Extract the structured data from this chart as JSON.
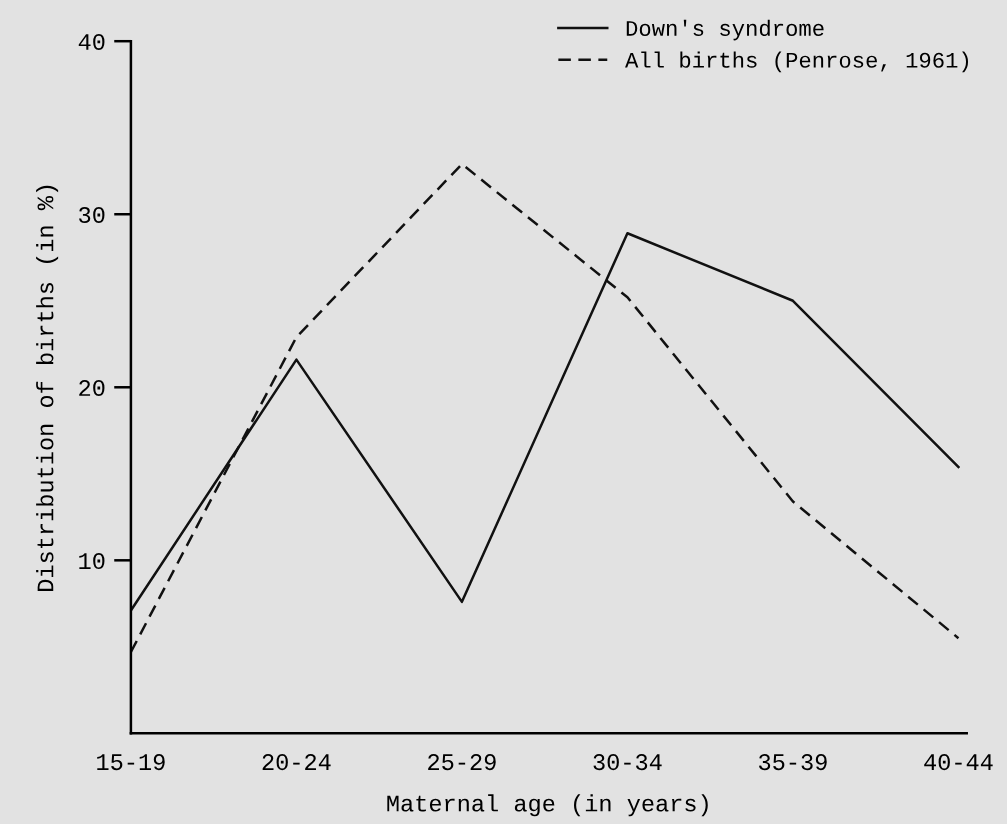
{
  "chart_data": {
    "type": "line",
    "xlabel": "Maternal age (in years)",
    "ylabel": "Distribution of births (in %)",
    "categories": [
      "15-19",
      "20-24",
      "25-29",
      "30-34",
      "35-39",
      "40-44"
    ],
    "series": [
      {
        "name": "Down's syndrome",
        "color": "#111111",
        "line_style": "solid",
        "values": [
          7.1,
          21.6,
          7.6,
          28.9,
          25.0,
          15.4
        ]
      },
      {
        "name": "All births (Penrose, 1961)",
        "color": "#111111",
        "line_style": "dashed",
        "values": [
          4.7,
          22.9,
          32.9,
          25.2,
          13.4,
          5.5
        ]
      }
    ],
    "ylim": [
      0,
      40
    ],
    "yticks": [
      10,
      20,
      30,
      40
    ],
    "grid": false,
    "legend": "top right",
    "marker": "none"
  }
}
